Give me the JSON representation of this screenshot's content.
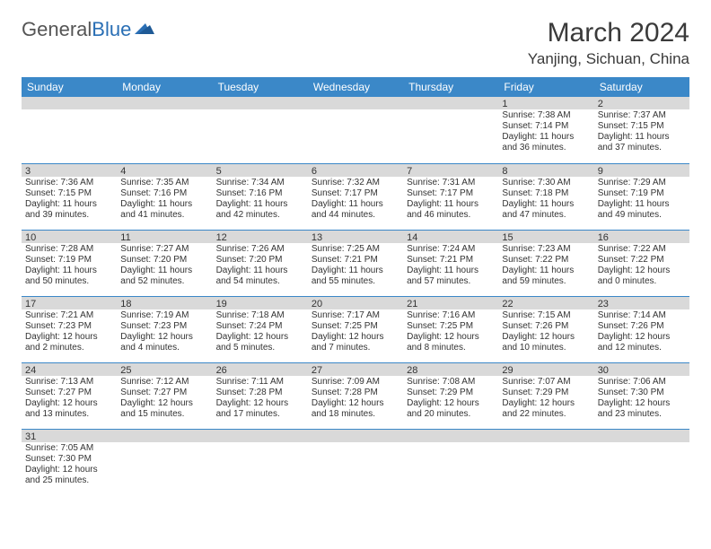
{
  "logo": {
    "textA": "General",
    "textB": "Blue"
  },
  "title": "March 2024",
  "location": "Yanjing, Sichuan, China",
  "colors": {
    "header_bg": "#3b88c8",
    "header_text": "#ffffff",
    "daybar_bg": "#d9d9d9",
    "rule": "#3b88c8",
    "text": "#333333",
    "logo_gray": "#555555",
    "logo_blue": "#2a6fb5"
  },
  "day_headers": [
    "Sunday",
    "Monday",
    "Tuesday",
    "Wednesday",
    "Thursday",
    "Friday",
    "Saturday"
  ],
  "weeks": [
    [
      {
        "n": "",
        "l": []
      },
      {
        "n": "",
        "l": []
      },
      {
        "n": "",
        "l": []
      },
      {
        "n": "",
        "l": []
      },
      {
        "n": "",
        "l": []
      },
      {
        "n": "1",
        "l": [
          "Sunrise: 7:38 AM",
          "Sunset: 7:14 PM",
          "Daylight: 11 hours and 36 minutes."
        ]
      },
      {
        "n": "2",
        "l": [
          "Sunrise: 7:37 AM",
          "Sunset: 7:15 PM",
          "Daylight: 11 hours and 37 minutes."
        ]
      }
    ],
    [
      {
        "n": "3",
        "l": [
          "Sunrise: 7:36 AM",
          "Sunset: 7:15 PM",
          "Daylight: 11 hours and 39 minutes."
        ]
      },
      {
        "n": "4",
        "l": [
          "Sunrise: 7:35 AM",
          "Sunset: 7:16 PM",
          "Daylight: 11 hours and 41 minutes."
        ]
      },
      {
        "n": "5",
        "l": [
          "Sunrise: 7:34 AM",
          "Sunset: 7:16 PM",
          "Daylight: 11 hours and 42 minutes."
        ]
      },
      {
        "n": "6",
        "l": [
          "Sunrise: 7:32 AM",
          "Sunset: 7:17 PM",
          "Daylight: 11 hours and 44 minutes."
        ]
      },
      {
        "n": "7",
        "l": [
          "Sunrise: 7:31 AM",
          "Sunset: 7:17 PM",
          "Daylight: 11 hours and 46 minutes."
        ]
      },
      {
        "n": "8",
        "l": [
          "Sunrise: 7:30 AM",
          "Sunset: 7:18 PM",
          "Daylight: 11 hours and 47 minutes."
        ]
      },
      {
        "n": "9",
        "l": [
          "Sunrise: 7:29 AM",
          "Sunset: 7:19 PM",
          "Daylight: 11 hours and 49 minutes."
        ]
      }
    ],
    [
      {
        "n": "10",
        "l": [
          "Sunrise: 7:28 AM",
          "Sunset: 7:19 PM",
          "Daylight: 11 hours and 50 minutes."
        ]
      },
      {
        "n": "11",
        "l": [
          "Sunrise: 7:27 AM",
          "Sunset: 7:20 PM",
          "Daylight: 11 hours and 52 minutes."
        ]
      },
      {
        "n": "12",
        "l": [
          "Sunrise: 7:26 AM",
          "Sunset: 7:20 PM",
          "Daylight: 11 hours and 54 minutes."
        ]
      },
      {
        "n": "13",
        "l": [
          "Sunrise: 7:25 AM",
          "Sunset: 7:21 PM",
          "Daylight: 11 hours and 55 minutes."
        ]
      },
      {
        "n": "14",
        "l": [
          "Sunrise: 7:24 AM",
          "Sunset: 7:21 PM",
          "Daylight: 11 hours and 57 minutes."
        ]
      },
      {
        "n": "15",
        "l": [
          "Sunrise: 7:23 AM",
          "Sunset: 7:22 PM",
          "Daylight: 11 hours and 59 minutes."
        ]
      },
      {
        "n": "16",
        "l": [
          "Sunrise: 7:22 AM",
          "Sunset: 7:22 PM",
          "Daylight: 12 hours and 0 minutes."
        ]
      }
    ],
    [
      {
        "n": "17",
        "l": [
          "Sunrise: 7:21 AM",
          "Sunset: 7:23 PM",
          "Daylight: 12 hours and 2 minutes."
        ]
      },
      {
        "n": "18",
        "l": [
          "Sunrise: 7:19 AM",
          "Sunset: 7:23 PM",
          "Daylight: 12 hours and 4 minutes."
        ]
      },
      {
        "n": "19",
        "l": [
          "Sunrise: 7:18 AM",
          "Sunset: 7:24 PM",
          "Daylight: 12 hours and 5 minutes."
        ]
      },
      {
        "n": "20",
        "l": [
          "Sunrise: 7:17 AM",
          "Sunset: 7:25 PM",
          "Daylight: 12 hours and 7 minutes."
        ]
      },
      {
        "n": "21",
        "l": [
          "Sunrise: 7:16 AM",
          "Sunset: 7:25 PM",
          "Daylight: 12 hours and 8 minutes."
        ]
      },
      {
        "n": "22",
        "l": [
          "Sunrise: 7:15 AM",
          "Sunset: 7:26 PM",
          "Daylight: 12 hours and 10 minutes."
        ]
      },
      {
        "n": "23",
        "l": [
          "Sunrise: 7:14 AM",
          "Sunset: 7:26 PM",
          "Daylight: 12 hours and 12 minutes."
        ]
      }
    ],
    [
      {
        "n": "24",
        "l": [
          "Sunrise: 7:13 AM",
          "Sunset: 7:27 PM",
          "Daylight: 12 hours and 13 minutes."
        ]
      },
      {
        "n": "25",
        "l": [
          "Sunrise: 7:12 AM",
          "Sunset: 7:27 PM",
          "Daylight: 12 hours and 15 minutes."
        ]
      },
      {
        "n": "26",
        "l": [
          "Sunrise: 7:11 AM",
          "Sunset: 7:28 PM",
          "Daylight: 12 hours and 17 minutes."
        ]
      },
      {
        "n": "27",
        "l": [
          "Sunrise: 7:09 AM",
          "Sunset: 7:28 PM",
          "Daylight: 12 hours and 18 minutes."
        ]
      },
      {
        "n": "28",
        "l": [
          "Sunrise: 7:08 AM",
          "Sunset: 7:29 PM",
          "Daylight: 12 hours and 20 minutes."
        ]
      },
      {
        "n": "29",
        "l": [
          "Sunrise: 7:07 AM",
          "Sunset: 7:29 PM",
          "Daylight: 12 hours and 22 minutes."
        ]
      },
      {
        "n": "30",
        "l": [
          "Sunrise: 7:06 AM",
          "Sunset: 7:30 PM",
          "Daylight: 12 hours and 23 minutes."
        ]
      }
    ],
    [
      {
        "n": "31",
        "l": [
          "Sunrise: 7:05 AM",
          "Sunset: 7:30 PM",
          "Daylight: 12 hours and 25 minutes."
        ]
      },
      {
        "n": "",
        "l": []
      },
      {
        "n": "",
        "l": []
      },
      {
        "n": "",
        "l": []
      },
      {
        "n": "",
        "l": []
      },
      {
        "n": "",
        "l": []
      },
      {
        "n": "",
        "l": []
      }
    ]
  ]
}
